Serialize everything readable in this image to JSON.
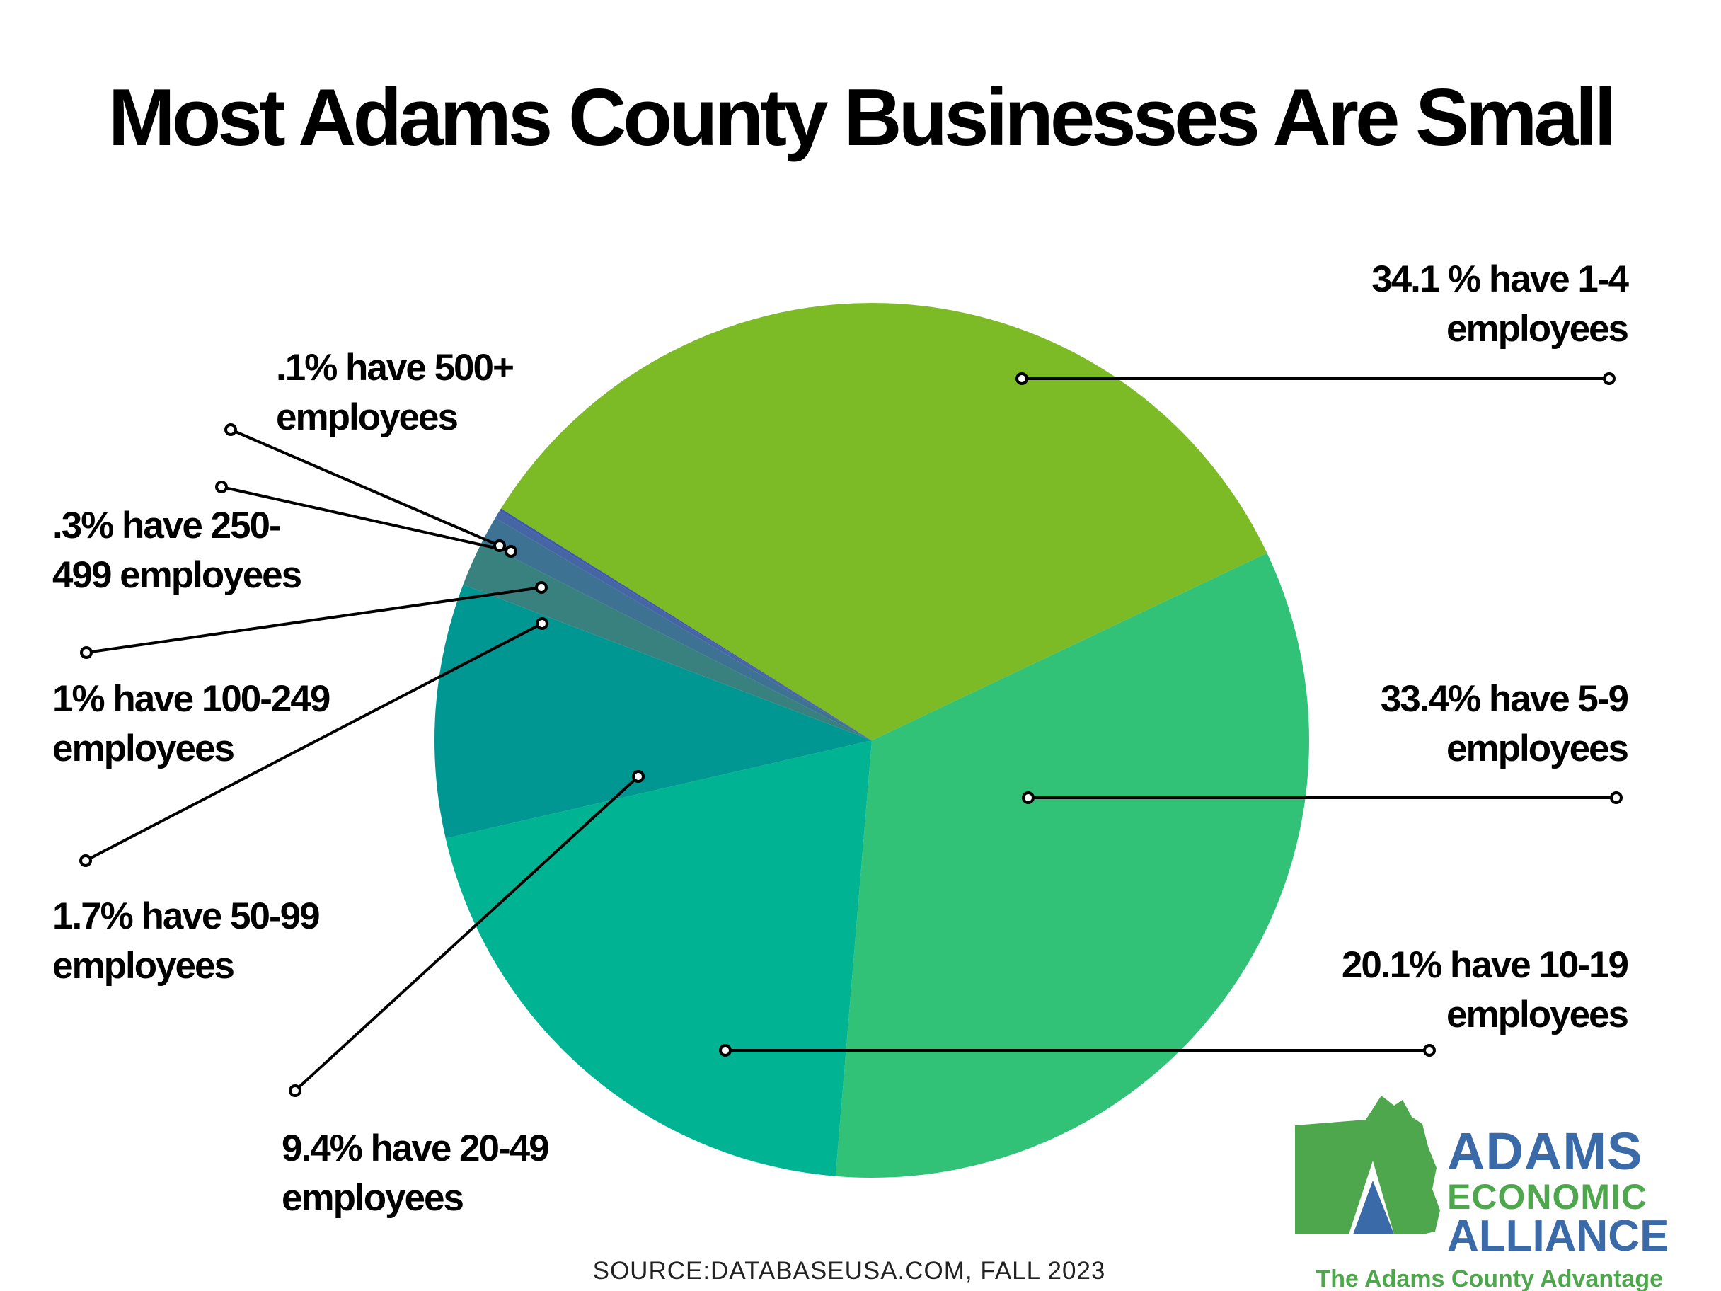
{
  "chart_data": {
    "type": "pie",
    "title": "Most Adams County Businesses Are Small",
    "slices": [
      {
        "value": 34.1,
        "color": "#7dbb26",
        "label_lines": [
          "34.1 %  have 1-4",
          "employees"
        ]
      },
      {
        "value": 33.4,
        "color": "#32c277",
        "label_lines": [
          "33.4%  have 5-9",
          "employees"
        ]
      },
      {
        "value": 20.1,
        "color": "#00b493",
        "label_lines": [
          "20.1% have 10-19",
          "employees"
        ]
      },
      {
        "value": 9.4,
        "color": "#009793",
        "label_lines": [
          "9.4% have 20-49",
          "employees"
        ]
      },
      {
        "value": 1.7,
        "color": "#38817f",
        "label_lines": [
          "1.7% have 50-99",
          "employees"
        ]
      },
      {
        "value": 1.0,
        "color": "#3d7293",
        "label_lines": [
          "1% have 100-249",
          "employees"
        ]
      },
      {
        "value": 0.3,
        "color": "#4565a4",
        "label_lines": [
          ".3% have 250-",
          "499 employees"
        ]
      },
      {
        "value": 0.1,
        "color": "#3f5aa8",
        "label_lines": [
          ".1% have 500+",
          "employees"
        ]
      }
    ]
  },
  "source_note": "SOURCE:DATABASEUSA.COM, FALL 2023",
  "logo": {
    "word_1": "ADAMS",
    "word_2": "ECONOMIC",
    "word_3": "ALLIANCE",
    "tagline": "The Adams County Advantage",
    "colors": {
      "blue": "#3b6aa8",
      "green": "#4ea64d"
    }
  }
}
